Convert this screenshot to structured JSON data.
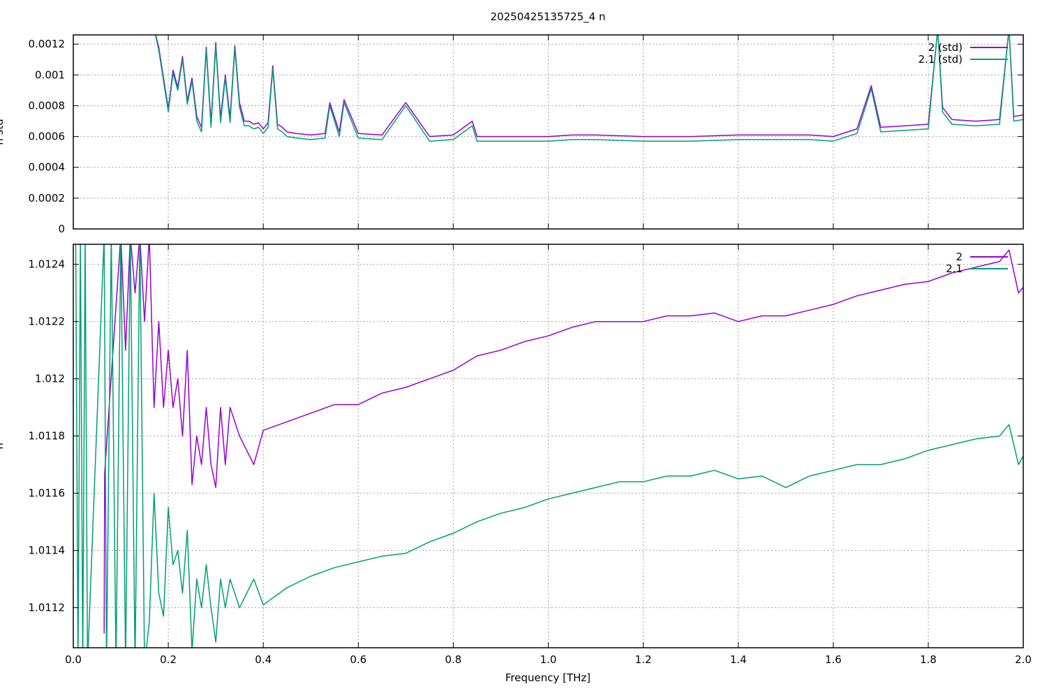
{
  "figure_title": "20250425135725_4 n",
  "colors": {
    "series_2": "#9400d3",
    "series_2_1": "#009e73"
  },
  "chart_data": [
    {
      "type": "line",
      "panel": "top",
      "ylabel": "n std",
      "xlabel": "",
      "xlim": [
        0.0,
        2.0
      ],
      "ylim": [
        0,
        0.00126
      ],
      "x_ticks": [
        0.0,
        0.2,
        0.4,
        0.6,
        0.8,
        1.0,
        1.2,
        1.4,
        1.6,
        1.8,
        2.0
      ],
      "y_ticks": [
        0,
        0.0002,
        0.0004,
        0.0006,
        0.0008,
        0.001,
        0.0012
      ],
      "y_tick_labels": [
        "0",
        "0.0002",
        "0.0004",
        "0.0006",
        "0.0008",
        "0.001",
        "0.0012"
      ],
      "grid": true,
      "legend_position": "top-right",
      "series": [
        {
          "name": "2 (std)",
          "color": "#9400d3",
          "x": [
            0.17,
            0.18,
            0.19,
            0.2,
            0.21,
            0.22,
            0.23,
            0.24,
            0.25,
            0.26,
            0.27,
            0.28,
            0.29,
            0.3,
            0.31,
            0.32,
            0.33,
            0.34,
            0.35,
            0.36,
            0.37,
            0.38,
            0.39,
            0.4,
            0.41,
            0.42,
            0.43,
            0.44,
            0.45,
            0.47,
            0.5,
            0.53,
            0.54,
            0.56,
            0.57,
            0.6,
            0.65,
            0.7,
            0.75,
            0.8,
            0.84,
            0.85,
            0.9,
            0.95,
            1.0,
            1.05,
            1.1,
            1.2,
            1.3,
            1.4,
            1.45,
            1.5,
            1.55,
            1.6,
            1.65,
            1.68,
            1.7,
            1.75,
            1.8,
            1.82,
            1.83,
            1.85,
            1.9,
            1.95,
            1.97,
            1.98,
            2.0
          ],
          "values": [
            0.0013,
            0.00118,
            0.00098,
            0.00078,
            0.00103,
            0.00092,
            0.00112,
            0.00083,
            0.00098,
            0.00073,
            0.00066,
            0.00118,
            0.00069,
            0.00121,
            0.00072,
            0.001,
            0.00072,
            0.00119,
            0.00082,
            0.0007,
            0.0007,
            0.00068,
            0.00069,
            0.00065,
            0.00069,
            0.00106,
            0.00068,
            0.00066,
            0.00063,
            0.00062,
            0.00061,
            0.00062,
            0.00082,
            0.00063,
            0.00084,
            0.00062,
            0.00061,
            0.00082,
            0.0006,
            0.00061,
            0.0007,
            0.0006,
            0.0006,
            0.0006,
            0.0006,
            0.00061,
            0.00061,
            0.0006,
            0.0006,
            0.00061,
            0.00061,
            0.00061,
            0.00061,
            0.0006,
            0.00065,
            0.00093,
            0.00066,
            0.00067,
            0.00068,
            0.0013,
            0.00079,
            0.00071,
            0.0007,
            0.00071,
            0.0013,
            0.00073,
            0.00074
          ]
        },
        {
          "name": "2.1 (std)",
          "color": "#009e73",
          "x": [
            0.17,
            0.18,
            0.19,
            0.2,
            0.21,
            0.22,
            0.23,
            0.24,
            0.25,
            0.26,
            0.27,
            0.28,
            0.29,
            0.3,
            0.31,
            0.32,
            0.33,
            0.34,
            0.35,
            0.36,
            0.37,
            0.38,
            0.39,
            0.4,
            0.41,
            0.42,
            0.43,
            0.44,
            0.45,
            0.47,
            0.5,
            0.53,
            0.54,
            0.56,
            0.57,
            0.6,
            0.65,
            0.7,
            0.75,
            0.8,
            0.84,
            0.85,
            0.9,
            0.95,
            1.0,
            1.05,
            1.1,
            1.2,
            1.3,
            1.4,
            1.45,
            1.5,
            1.55,
            1.6,
            1.65,
            1.68,
            1.7,
            1.75,
            1.8,
            1.82,
            1.83,
            1.85,
            1.9,
            1.95,
            1.97,
            1.98,
            2.0
          ],
          "values": [
            0.0013,
            0.00116,
            0.00096,
            0.00076,
            0.00101,
            0.0009,
            0.0011,
            0.00081,
            0.00096,
            0.0007,
            0.00063,
            0.00116,
            0.00066,
            0.00119,
            0.00069,
            0.00098,
            0.00069,
            0.00117,
            0.00079,
            0.00067,
            0.00067,
            0.00065,
            0.00066,
            0.00062,
            0.00066,
            0.00104,
            0.00065,
            0.00063,
            0.0006,
            0.00059,
            0.00058,
            0.00059,
            0.0008,
            0.0006,
            0.00082,
            0.00059,
            0.00058,
            0.0008,
            0.00057,
            0.00058,
            0.00067,
            0.00057,
            0.00057,
            0.00057,
            0.00057,
            0.00058,
            0.00058,
            0.00057,
            0.00057,
            0.00058,
            0.00058,
            0.00058,
            0.00058,
            0.00057,
            0.00062,
            0.00091,
            0.00063,
            0.00064,
            0.00065,
            0.0013,
            0.00076,
            0.00068,
            0.00067,
            0.00068,
            0.0013,
            0.0007,
            0.00071
          ]
        }
      ]
    },
    {
      "type": "line",
      "panel": "bottom",
      "ylabel": "n",
      "xlabel": "Frequency [THz]",
      "xlim": [
        0.0,
        2.0
      ],
      "ylim": [
        1.01106,
        1.01247
      ],
      "x_ticks": [
        0.0,
        0.2,
        0.4,
        0.6,
        0.8,
        1.0,
        1.2,
        1.4,
        1.6,
        1.8,
        2.0
      ],
      "x_tick_labels": [
        "0.0",
        "0.2",
        "0.4",
        "0.6",
        "0.8",
        "1.0",
        "1.2",
        "1.4",
        "1.6",
        "1.8",
        "2.0"
      ],
      "y_ticks": [
        1.0112,
        1.0114,
        1.0116,
        1.0118,
        1.012,
        1.0122,
        1.0124
      ],
      "y_tick_labels": [
        "1.0112",
        "1.0114",
        "1.0116",
        "1.0118",
        "1.012",
        "1.0122",
        "1.0124"
      ],
      "grid": true,
      "legend_position": "top-right",
      "series": [
        {
          "name": "2",
          "color": "#9400d3",
          "x": [
            0.065,
            0.066,
            0.1,
            0.11,
            0.12,
            0.13,
            0.14,
            0.15,
            0.16,
            0.17,
            0.18,
            0.19,
            0.2,
            0.21,
            0.22,
            0.23,
            0.24,
            0.25,
            0.26,
            0.27,
            0.28,
            0.29,
            0.3,
            0.31,
            0.32,
            0.33,
            0.35,
            0.38,
            0.4,
            0.45,
            0.5,
            0.55,
            0.6,
            0.65,
            0.7,
            0.75,
            0.8,
            0.85,
            0.9,
            0.95,
            1.0,
            1.05,
            1.1,
            1.15,
            1.2,
            1.25,
            1.3,
            1.35,
            1.4,
            1.45,
            1.5,
            1.55,
            1.6,
            1.65,
            1.7,
            1.75,
            1.8,
            1.85,
            1.9,
            1.95,
            1.97,
            1.99,
            2.0
          ],
          "values": [
            1.01111,
            1.01167,
            1.0125,
            1.0121,
            1.0125,
            1.0123,
            1.0125,
            1.0122,
            1.0125,
            1.0119,
            1.0122,
            1.0119,
            1.0121,
            1.0119,
            1.012,
            1.0118,
            1.0121,
            1.01163,
            1.0118,
            1.0117,
            1.0119,
            1.0117,
            1.01162,
            1.0119,
            1.0117,
            1.0119,
            1.0118,
            1.0117,
            1.01182,
            1.01185,
            1.01188,
            1.01191,
            1.01191,
            1.01195,
            1.01197,
            1.012,
            1.01203,
            1.01208,
            1.0121,
            1.01213,
            1.01215,
            1.01218,
            1.0122,
            1.0122,
            1.0122,
            1.01222,
            1.01222,
            1.01223,
            1.0122,
            1.01222,
            1.01222,
            1.01224,
            1.01226,
            1.01229,
            1.01231,
            1.01233,
            1.01234,
            1.01237,
            1.01239,
            1.01241,
            1.01245,
            1.0123,
            1.01232
          ]
        },
        {
          "name": "2.1",
          "color": "#009e73",
          "x": [
            0.005,
            0.01,
            0.015,
            0.02,
            0.025,
            0.03,
            0.065,
            0.07,
            0.08,
            0.09,
            0.1,
            0.11,
            0.12,
            0.13,
            0.14,
            0.15,
            0.16,
            0.17,
            0.18,
            0.19,
            0.2,
            0.21,
            0.22,
            0.23,
            0.24,
            0.25,
            0.26,
            0.27,
            0.28,
            0.29,
            0.3,
            0.31,
            0.32,
            0.33,
            0.35,
            0.38,
            0.4,
            0.45,
            0.5,
            0.55,
            0.6,
            0.65,
            0.7,
            0.75,
            0.8,
            0.85,
            0.9,
            0.95,
            1.0,
            1.05,
            1.1,
            1.15,
            1.2,
            1.25,
            1.3,
            1.35,
            1.4,
            1.45,
            1.5,
            1.55,
            1.6,
            1.65,
            1.7,
            1.75,
            1.8,
            1.85,
            1.9,
            1.95,
            1.97,
            1.99,
            2.0
          ],
          "values": [
            1.0125,
            1.011,
            1.0125,
            1.011,
            1.0125,
            1.011,
            1.0125,
            1.011,
            1.0125,
            1.011,
            1.0125,
            1.011,
            1.0125,
            1.011,
            1.0125,
            1.011,
            1.01115,
            1.0116,
            1.01125,
            1.01117,
            1.01155,
            1.01135,
            1.0114,
            1.01125,
            1.01147,
            1.01105,
            1.0113,
            1.0112,
            1.01135,
            1.0112,
            1.01108,
            1.0113,
            1.0112,
            1.0113,
            1.0112,
            1.0113,
            1.01121,
            1.01127,
            1.01131,
            1.01134,
            1.01136,
            1.01138,
            1.01139,
            1.01143,
            1.01146,
            1.0115,
            1.01153,
            1.01155,
            1.01158,
            1.0116,
            1.01162,
            1.01164,
            1.01164,
            1.01166,
            1.01166,
            1.01168,
            1.01165,
            1.01166,
            1.01162,
            1.01166,
            1.01168,
            1.0117,
            1.0117,
            1.01172,
            1.01175,
            1.01177,
            1.01179,
            1.0118,
            1.01184,
            1.0117,
            1.01173
          ]
        }
      ]
    }
  ]
}
